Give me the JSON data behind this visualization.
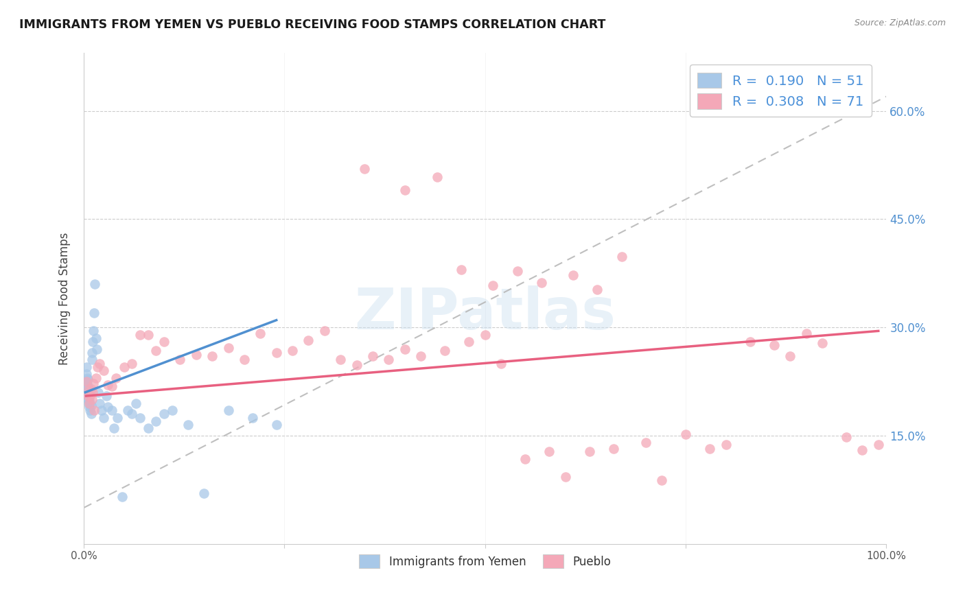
{
  "title": "IMMIGRANTS FROM YEMEN VS PUEBLO RECEIVING FOOD STAMPS CORRELATION CHART",
  "source": "Source: ZipAtlas.com",
  "ylabel": "Receiving Food Stamps",
  "ytick_vals": [
    0.15,
    0.3,
    0.45,
    0.6
  ],
  "ytick_labels": [
    "15.0%",
    "30.0%",
    "45.0%",
    "60.0%"
  ],
  "legend_labels": [
    "Immigrants from Yemen",
    "Pueblo"
  ],
  "R_blue": "0.190",
  "N_blue": "51",
  "R_pink": "0.308",
  "N_pink": "71",
  "blue_color": "#a8c8e8",
  "pink_color": "#f4a8b8",
  "blue_line_color": "#5090d0",
  "pink_line_color": "#e86080",
  "dash_color": "#b8b8b8",
  "blue_scatter_x": [
    0.002,
    0.003,
    0.003,
    0.004,
    0.004,
    0.004,
    0.005,
    0.005,
    0.005,
    0.005,
    0.006,
    0.006,
    0.006,
    0.007,
    0.007,
    0.007,
    0.008,
    0.008,
    0.009,
    0.009,
    0.01,
    0.01,
    0.011,
    0.012,
    0.013,
    0.014,
    0.015,
    0.016,
    0.018,
    0.02,
    0.022,
    0.025,
    0.028,
    0.03,
    0.035,
    0.038,
    0.042,
    0.048,
    0.055,
    0.06,
    0.065,
    0.07,
    0.08,
    0.09,
    0.1,
    0.11,
    0.13,
    0.15,
    0.18,
    0.21,
    0.24
  ],
  "blue_scatter_y": [
    0.225,
    0.235,
    0.245,
    0.215,
    0.22,
    0.23,
    0.2,
    0.21,
    0.218,
    0.228,
    0.195,
    0.205,
    0.215,
    0.19,
    0.198,
    0.208,
    0.185,
    0.195,
    0.18,
    0.192,
    0.255,
    0.265,
    0.28,
    0.295,
    0.32,
    0.36,
    0.285,
    0.27,
    0.21,
    0.195,
    0.185,
    0.175,
    0.205,
    0.19,
    0.185,
    0.16,
    0.175,
    0.065,
    0.185,
    0.18,
    0.195,
    0.175,
    0.16,
    0.17,
    0.18,
    0.185,
    0.165,
    0.07,
    0.185,
    0.175,
    0.165
  ],
  "pink_scatter_x": [
    0.003,
    0.005,
    0.006,
    0.007,
    0.008,
    0.009,
    0.01,
    0.011,
    0.012,
    0.013,
    0.015,
    0.017,
    0.02,
    0.025,
    0.03,
    0.035,
    0.04,
    0.05,
    0.06,
    0.07,
    0.08,
    0.09,
    0.1,
    0.12,
    0.14,
    0.16,
    0.18,
    0.2,
    0.22,
    0.24,
    0.26,
    0.28,
    0.3,
    0.32,
    0.34,
    0.36,
    0.38,
    0.4,
    0.42,
    0.45,
    0.48,
    0.5,
    0.52,
    0.55,
    0.58,
    0.6,
    0.63,
    0.66,
    0.7,
    0.72,
    0.75,
    0.78,
    0.8,
    0.83,
    0.86,
    0.88,
    0.9,
    0.92,
    0.95,
    0.97,
    0.99,
    0.35,
    0.4,
    0.44,
    0.47,
    0.51,
    0.54,
    0.57,
    0.61,
    0.64,
    0.67
  ],
  "pink_scatter_y": [
    0.225,
    0.205,
    0.215,
    0.195,
    0.205,
    0.215,
    0.2,
    0.21,
    0.222,
    0.185,
    0.23,
    0.245,
    0.25,
    0.24,
    0.22,
    0.218,
    0.23,
    0.245,
    0.25,
    0.29,
    0.29,
    0.268,
    0.28,
    0.255,
    0.262,
    0.26,
    0.272,
    0.255,
    0.292,
    0.265,
    0.268,
    0.282,
    0.295,
    0.255,
    0.248,
    0.26,
    0.255,
    0.27,
    0.26,
    0.268,
    0.28,
    0.29,
    0.25,
    0.118,
    0.128,
    0.093,
    0.128,
    0.132,
    0.14,
    0.088,
    0.152,
    0.132,
    0.138,
    0.28,
    0.275,
    0.26,
    0.292,
    0.278,
    0.148,
    0.13,
    0.138,
    0.52,
    0.49,
    0.508,
    0.38,
    0.358,
    0.378,
    0.362,
    0.372,
    0.352,
    0.398
  ],
  "xlim": [
    0.0,
    1.0
  ],
  "ylim": [
    0.0,
    0.68
  ],
  "blue_trend_x": [
    0.002,
    0.24
  ],
  "blue_trend_y": [
    0.21,
    0.31
  ],
  "pink_trend_x": [
    0.003,
    0.99
  ],
  "pink_trend_y": [
    0.205,
    0.295
  ],
  "dash_trend_x": [
    0.0,
    1.0
  ],
  "dash_trend_y": [
    0.05,
    0.62
  ],
  "watermark_text": "ZIPatlas",
  "bg_color": "#ffffff"
}
